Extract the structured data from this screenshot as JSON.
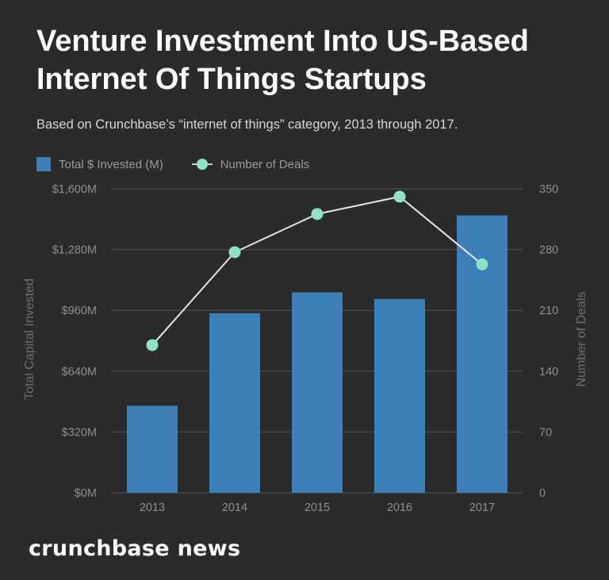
{
  "header": {
    "title": "Venture Investment Into US-Based Internet Of Things Startups",
    "subtitle": "Based on Crunchbase’s “internet of things” category, 2013 through 2017."
  },
  "legend": {
    "bars_label": "Total $ Invested (M)",
    "line_label": "Number of Deals"
  },
  "chart_data": {
    "type": "bar",
    "categories": [
      "2013",
      "2014",
      "2015",
      "2016",
      "2017"
    ],
    "series": [
      {
        "name": "Total $ Invested (M)",
        "type": "bar",
        "axis": "left",
        "values": [
          458,
          945,
          1055,
          1020,
          1460
        ]
      },
      {
        "name": "Number of Deals",
        "type": "line",
        "axis": "right",
        "values": [
          170,
          277,
          321,
          341,
          263
        ]
      }
    ],
    "ylabel_left": "Total Capital Invested",
    "ylabel_right": "Number of Deals",
    "ylim_left": [
      0,
      1600
    ],
    "ylim_right": [
      0,
      350
    ],
    "y_ticks_left": [
      "$0M",
      "$320M",
      "$640M",
      "$960M",
      "$1,280M",
      "$1,600M"
    ],
    "y_ticks_right": [
      "0",
      "70",
      "140",
      "210",
      "280",
      "350"
    ],
    "grid": true,
    "legend_position": "top-left"
  },
  "colors": {
    "background": "#2b2b2b",
    "bar": "#3a7fb8",
    "line": "#e6e6e6",
    "marker": "#8fe3c5",
    "grid": "#555555",
    "axis_text": "#8e8e8e"
  },
  "footer": {
    "brand": "crunchbase news"
  }
}
